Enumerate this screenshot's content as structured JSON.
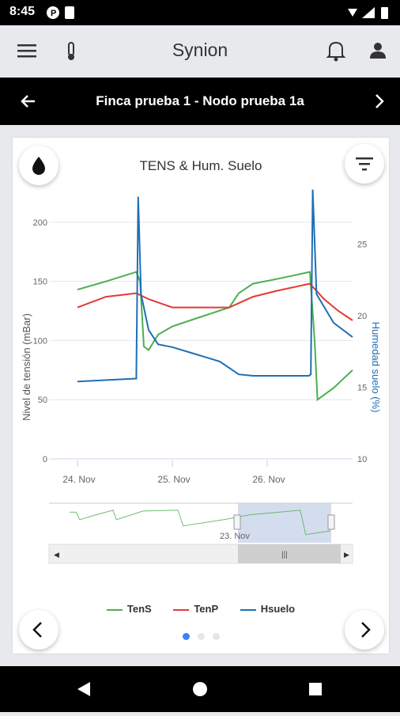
{
  "status": {
    "time": "8:45"
  },
  "app": {
    "title": "Synion"
  },
  "subbar": {
    "title": "Finca prueba 1 - Nodo prueba 1a"
  },
  "colors": {
    "tens": "#4caf50",
    "tenp": "#e53935",
    "hsuelo": "#1e6fb5",
    "dot_active": "#3b82f6"
  },
  "chart_data": {
    "type": "line",
    "title": "TENS & Hum. Suelo",
    "ylabel": "Nivel de tensión (mBar)",
    "y2label": "Humedad suelo (%)",
    "ylim": [
      0,
      230
    ],
    "y2lim": [
      10,
      29
    ],
    "yticks": [
      "0",
      "50",
      "100",
      "150",
      "200"
    ],
    "y2ticks": [
      "10",
      "15",
      "20",
      "25"
    ],
    "xticks": [
      "24. Nov",
      "25. Nov",
      "26. Nov"
    ],
    "navigator_label": "23. Nov",
    "series": [
      {
        "name": "TenS",
        "axis": "left",
        "points": [
          [
            0,
            143
          ],
          [
            0.3,
            150
          ],
          [
            0.62,
            158
          ],
          [
            0.66,
            150
          ],
          [
            0.7,
            95
          ],
          [
            0.75,
            92
          ],
          [
            0.85,
            105
          ],
          [
            1.0,
            112
          ],
          [
            1.3,
            120
          ],
          [
            1.6,
            128
          ],
          [
            1.7,
            140
          ],
          [
            1.85,
            148
          ],
          [
            2.1,
            152
          ],
          [
            2.45,
            158
          ],
          [
            2.5,
            100
          ],
          [
            2.53,
            50
          ],
          [
            2.7,
            60
          ],
          [
            2.9,
            75
          ]
        ]
      },
      {
        "name": "TenP",
        "axis": "left",
        "points": [
          [
            0,
            128
          ],
          [
            0.3,
            137
          ],
          [
            0.62,
            140
          ],
          [
            0.75,
            135
          ],
          [
            1.0,
            128
          ],
          [
            1.3,
            128
          ],
          [
            1.6,
            128
          ],
          [
            1.85,
            137
          ],
          [
            2.1,
            142
          ],
          [
            2.45,
            148
          ],
          [
            2.6,
            135
          ],
          [
            2.75,
            125
          ],
          [
            2.9,
            117
          ]
        ]
      },
      {
        "name": "Hsuelo",
        "axis": "right",
        "points": [
          [
            0,
            15.4
          ],
          [
            0.6,
            15.6
          ],
          [
            0.62,
            15.6
          ],
          [
            0.64,
            28.3
          ],
          [
            0.67,
            21.5
          ],
          [
            0.75,
            19
          ],
          [
            0.85,
            18
          ],
          [
            1.0,
            17.8
          ],
          [
            1.2,
            17.4
          ],
          [
            1.5,
            16.8
          ],
          [
            1.7,
            15.9
          ],
          [
            1.85,
            15.8
          ],
          [
            2.1,
            15.8
          ],
          [
            2.44,
            15.8
          ],
          [
            2.46,
            15.9
          ],
          [
            2.48,
            28.8
          ],
          [
            2.52,
            21.5
          ],
          [
            2.7,
            19.5
          ],
          [
            2.9,
            18.5
          ]
        ]
      }
    ],
    "legend_position": "bottom"
  },
  "icons": {
    "menu": "menu-icon",
    "thermo": "thermometer-icon",
    "bell": "bell-icon",
    "user": "account-icon",
    "back": "arrow-back-icon",
    "forward": "chevron-right-icon",
    "drop": "water-drop-icon",
    "filter": "filter-icon"
  }
}
